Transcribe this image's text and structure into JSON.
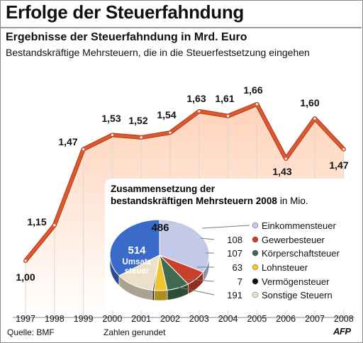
{
  "page": {
    "title": "Erfolge der Steuerfahndung",
    "source": "Quelle: BMF",
    "note": "Zahlen gerundet",
    "agency": "AFP"
  },
  "colors": {
    "line": "#e0582e",
    "line_dark": "#a93a1b",
    "gradient_top": "#ffd2b8",
    "gradient_bottom": "#ffffff",
    "pie_einkommen": "#c3c9e6",
    "pie_gewerbe": "#c7412a",
    "pie_koerperschaft": "#3f6a4e",
    "pie_lohn": "#f0c52e",
    "pie_vermoegen": "#111111",
    "pie_sonstige": "#ece1c8",
    "pie_umsatz": "#3a6bc8"
  },
  "chart_data": [
    {
      "type": "line",
      "title": "Ergebnisse der Steuerfahndung in Mrd. Euro",
      "subtitle": "Bestandskräftige Mehrsteuern, die in die Steuerfestsetzung eingehen",
      "x": [
        "1997",
        "1998",
        "1999",
        "2000",
        "2001",
        "2002",
        "2003",
        "2004",
        "2005",
        "2006",
        "2007",
        "2008"
      ],
      "values": [
        1.0,
        1.15,
        1.47,
        1.53,
        1.52,
        1.54,
        1.63,
        1.61,
        1.66,
        1.43,
        1.6,
        1.47
      ],
      "labels": [
        "1,00",
        "1,15",
        "1,47",
        "1,53",
        "1,52",
        "1,54",
        "1,63",
        "1,61",
        "1,66",
        "1,43",
        "1,60",
        "1,47"
      ],
      "ylim": [
        0.95,
        1.75
      ],
      "grid": false
    },
    {
      "type": "pie",
      "title_line1": "Zusammensetzung der",
      "title_line2": "bestandskräftigen Mehrsteuern 2008",
      "unit": "in Mio.",
      "slices": [
        {
          "name": "Einkommensteuer",
          "value": 486,
          "label": "486"
        },
        {
          "name": "Gewerbesteuer",
          "value": 108,
          "label": "108"
        },
        {
          "name": "Körperschaftsteuer",
          "value": 107,
          "label": "107"
        },
        {
          "name": "Lohnsteuer",
          "value": 63,
          "label": "63"
        },
        {
          "name": "Vermögensteuer",
          "value": 7,
          "label": "7"
        },
        {
          "name": "Sonstige Steuern",
          "value": 191,
          "label": "191"
        },
        {
          "name": "Umsatzsteuer",
          "value": 514,
          "label": "514",
          "inner_label_line1": "Umsatz",
          "inner_label_line2": "steuer"
        }
      ]
    }
  ]
}
